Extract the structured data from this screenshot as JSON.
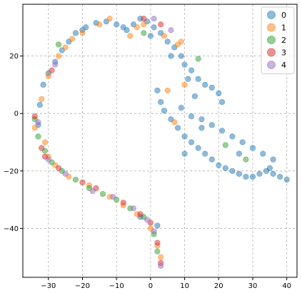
{
  "chart_data": {
    "type": "scatter",
    "title": "",
    "xlabel": "",
    "ylabel": "",
    "xlim": [
      -37.5,
      43
    ],
    "ylim": [
      -57,
      38
    ],
    "xticks": [
      -30,
      -20,
      -10,
      0,
      10,
      20,
      30,
      40
    ],
    "yticks": [
      -40,
      -20,
      0,
      20
    ],
    "grid": true,
    "legend": {
      "placement": "top-right",
      "entries": [
        "0",
        "1",
        "2",
        "3",
        "4"
      ]
    },
    "series": [
      {
        "name": "0",
        "color": "#1f77b4",
        "points": [
          [
            -33,
            -4
          ],
          [
            -32.5,
            3
          ],
          [
            -31.5,
            10
          ],
          [
            -30,
            14
          ],
          [
            -28,
            18
          ],
          [
            -26,
            22
          ],
          [
            -24,
            25
          ],
          [
            -22,
            28
          ],
          [
            -19,
            30
          ],
          [
            -16,
            31.5
          ],
          [
            -13,
            32
          ],
          [
            -10,
            31
          ],
          [
            -7,
            29
          ],
          [
            -5,
            31
          ],
          [
            -3,
            33
          ],
          [
            -1,
            32
          ],
          [
            1,
            30
          ],
          [
            3,
            28
          ],
          [
            5,
            25
          ],
          [
            7,
            23
          ],
          [
            9,
            20
          ],
          [
            10,
            17
          ],
          [
            12,
            15
          ],
          [
            14,
            12
          ],
          [
            16,
            10
          ],
          [
            18,
            9
          ],
          [
            20,
            7
          ],
          [
            21,
            4
          ],
          [
            2,
            8
          ],
          [
            3,
            4
          ],
          [
            4,
            1
          ],
          [
            6,
            -2
          ],
          [
            8,
            -5
          ],
          [
            10,
            -8
          ],
          [
            12,
            -10
          ],
          [
            14,
            -12
          ],
          [
            16,
            -14
          ],
          [
            18,
            -16
          ],
          [
            20,
            -18
          ],
          [
            22,
            -19
          ],
          [
            24,
            -20
          ],
          [
            26,
            -21
          ],
          [
            28,
            -22
          ],
          [
            30,
            -22
          ],
          [
            32,
            -21
          ],
          [
            34,
            -20
          ],
          [
            36,
            -21
          ],
          [
            38,
            -22
          ],
          [
            40,
            -23
          ],
          [
            15,
            -2
          ],
          [
            18,
            -4
          ],
          [
            21,
            -6
          ],
          [
            24,
            -8
          ],
          [
            27,
            -10
          ],
          [
            30,
            -12
          ],
          [
            33,
            -14
          ],
          [
            36,
            -16
          ],
          [
            9,
            2
          ],
          [
            12,
            -1
          ],
          [
            15,
            -5
          ],
          [
            11,
            12
          ],
          [
            13,
            6
          ],
          [
            -20,
            29
          ],
          [
            -8,
            30
          ],
          [
            0,
            27
          ],
          [
            6,
            20
          ],
          [
            10,
            -14
          ],
          [
            26,
            -14
          ],
          [
            35,
            -19
          ],
          [
            2,
            -39
          ],
          [
            -3,
            -36
          ]
        ]
      },
      {
        "name": "1",
        "color": "#ff7f0e",
        "points": [
          [
            -32,
            5
          ],
          [
            -31,
            -10
          ],
          [
            -30,
            13
          ],
          [
            -27,
            20
          ],
          [
            -25,
            23
          ],
          [
            -23,
            26
          ],
          [
            -20,
            28
          ],
          [
            -15,
            31
          ],
          [
            -12,
            33
          ],
          [
            -6,
            27
          ],
          [
            -4,
            30
          ],
          [
            4,
            27
          ],
          [
            8,
            24
          ],
          [
            -34,
            -5
          ],
          [
            -30,
            -15
          ],
          [
            -28,
            -18
          ],
          [
            -24,
            -22
          ],
          [
            -18,
            -25
          ],
          [
            -12,
            -29
          ],
          [
            -8,
            -32
          ],
          [
            -4,
            -35
          ],
          [
            0,
            -40
          ],
          [
            2,
            -46
          ],
          [
            3,
            -50
          ],
          [
            5,
            8
          ],
          [
            7,
            -3
          ],
          [
            10,
            10
          ],
          [
            -2,
            31
          ],
          [
            9,
            25
          ]
        ]
      },
      {
        "name": "2",
        "color": "#2ca02c",
        "points": [
          [
            -34,
            -2
          ],
          [
            -33,
            -8
          ],
          [
            -31,
            -13
          ],
          [
            -29,
            -17
          ],
          [
            -26,
            -20
          ],
          [
            -22,
            -23
          ],
          [
            -18,
            -26
          ],
          [
            -14,
            -28
          ],
          [
            -10,
            -30
          ],
          [
            -6,
            -33
          ],
          [
            -2,
            -36
          ],
          [
            1,
            -42
          ],
          [
            2,
            -48
          ],
          [
            22,
            -11
          ],
          [
            28,
            -16
          ],
          [
            -27,
            24
          ],
          [
            -2,
            28
          ],
          [
            14,
            19
          ]
        ]
      },
      {
        "name": "3",
        "color": "#d62728",
        "points": [
          [
            -34,
            -1
          ],
          [
            -32,
            -12
          ],
          [
            -31,
            -15
          ],
          [
            -27,
            -19
          ],
          [
            -20,
            -24
          ],
          [
            -16,
            -26
          ],
          [
            -8,
            -31
          ],
          [
            -3,
            -35
          ],
          [
            0,
            -38
          ],
          [
            2,
            -45
          ],
          [
            3,
            -52
          ],
          [
            -29,
            15
          ],
          [
            -2,
            33
          ],
          [
            3,
            31
          ]
        ]
      },
      {
        "name": "4",
        "color": "#9467bd",
        "points": [
          [
            -33,
            -3
          ],
          [
            -30,
            -16
          ],
          [
            -25,
            -21
          ],
          [
            -17,
            -27
          ],
          [
            -11,
            -29
          ],
          [
            -5,
            -33
          ],
          [
            -1,
            -37
          ],
          [
            1,
            -41
          ],
          [
            3,
            -53
          ],
          [
            -28,
            17
          ],
          [
            1,
            33
          ],
          [
            6,
            29
          ]
        ]
      }
    ]
  }
}
